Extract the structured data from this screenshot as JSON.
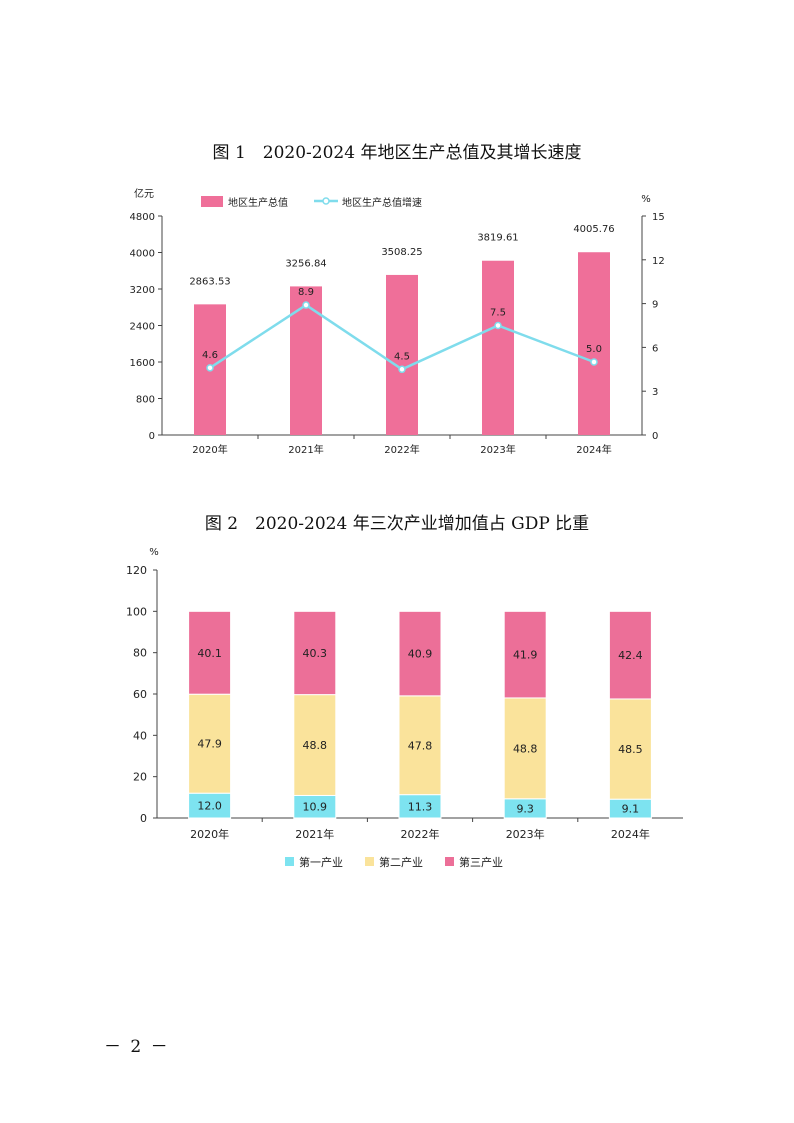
{
  "figure1": {
    "title": "图 1　2020-2024 年地区生产总值及其增长速度",
    "chart_data": {
      "type": "bar+line",
      "categories": [
        "2020年",
        "2021年",
        "2022年",
        "2023年",
        "2024年"
      ],
      "series": [
        {
          "name": "地区生产总值",
          "type": "bar",
          "axis": "left",
          "values": [
            2863.53,
            3256.84,
            3508.25,
            3819.61,
            4005.76
          ],
          "labels": [
            "2863.53",
            "3256.84",
            "3508.25",
            "3819.61",
            "4005.76"
          ],
          "color": "#ef6f99"
        },
        {
          "name": "地区生产总值增速",
          "type": "line",
          "axis": "right",
          "values": [
            4.6,
            8.9,
            4.5,
            7.5,
            5.0
          ],
          "labels": [
            "4.6",
            "8.9",
            "4.5",
            "7.5",
            "5.0"
          ],
          "color": "#7fdcec"
        }
      ],
      "y_left": {
        "unit": "亿元",
        "ylim": [
          0,
          4800
        ],
        "ticks": [
          "0",
          "800",
          "1600",
          "2400",
          "3200",
          "4000",
          "4800"
        ]
      },
      "y_right": {
        "unit": "%",
        "ylim": [
          0,
          15
        ],
        "ticks": [
          "0",
          "3",
          "6",
          "9",
          "12",
          "15"
        ]
      },
      "legend_position": "top"
    }
  },
  "figure2": {
    "title": "图 2　2020-2024 年三次产业增加值占 GDP 比重",
    "chart_data": {
      "type": "stacked-bar",
      "categories": [
        "2020年",
        "2021年",
        "2022年",
        "2023年",
        "2024年"
      ],
      "series": [
        {
          "name": "第一产业",
          "values": [
            12.0,
            10.9,
            11.3,
            9.3,
            9.1
          ],
          "labels": [
            "12.0",
            "10.9",
            "11.3",
            "9.3",
            "9.1"
          ],
          "color": "#7de3f0"
        },
        {
          "name": "第二产业",
          "values": [
            47.9,
            48.8,
            47.8,
            48.8,
            48.5
          ],
          "labels": [
            "47.9",
            "48.8",
            "47.8",
            "48.8",
            "48.5"
          ],
          "color": "#fae39b"
        },
        {
          "name": "第三产业",
          "values": [
            40.1,
            40.3,
            40.9,
            41.9,
            42.4
          ],
          "labels": [
            "40.1",
            "40.3",
            "40.9",
            "41.9",
            "42.4"
          ],
          "color": "#ec6f98"
        }
      ],
      "y": {
        "unit": "%",
        "ylim": [
          0,
          120
        ],
        "ticks": [
          "0",
          "20",
          "40",
          "60",
          "80",
          "100",
          "120"
        ]
      },
      "legend_position": "bottom"
    }
  },
  "page_number": "－ 2 －"
}
